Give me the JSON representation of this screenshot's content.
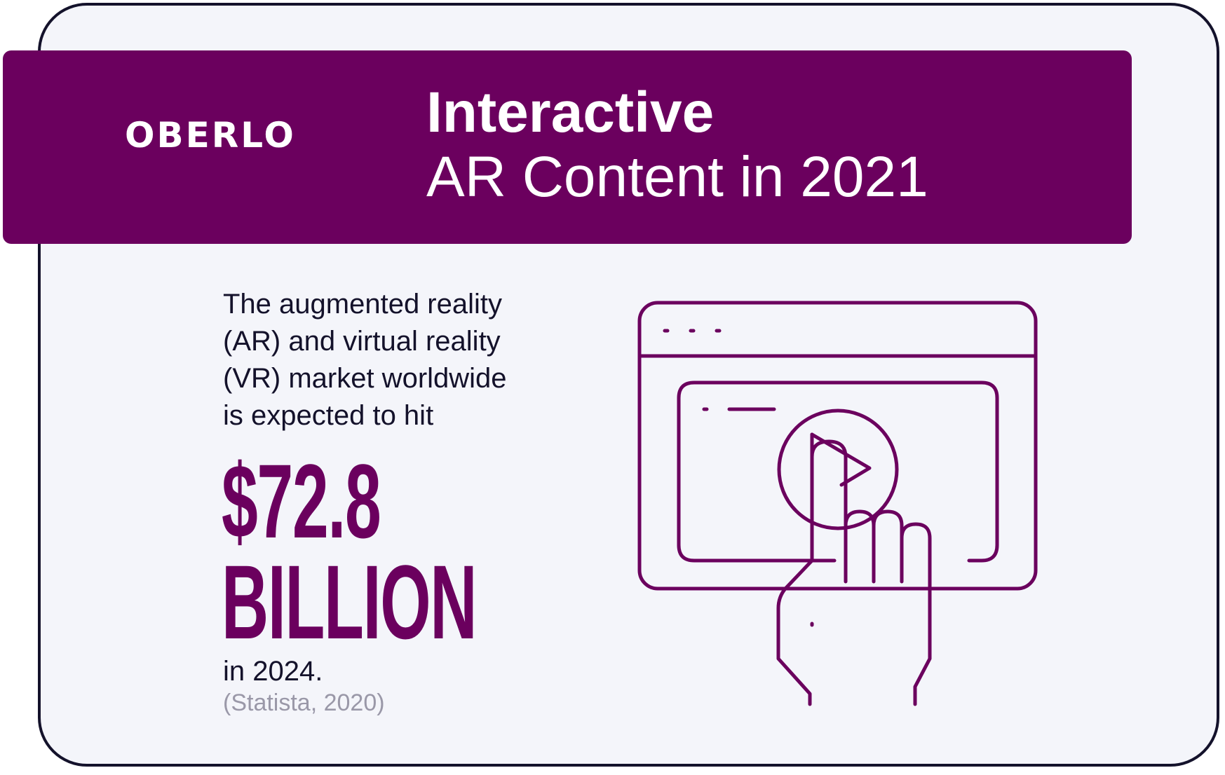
{
  "brand": {
    "logo_text": "OBERLO"
  },
  "header": {
    "title_line1": "Interactive",
    "title_line2": "AR Content in 2021"
  },
  "body": {
    "intro_lines": [
      "The augmented reality",
      "(AR) and virtual reality",
      "(VR) market worldwide",
      "is expected to hit"
    ],
    "stat_value": "$72.8",
    "stat_unit": "BILLION",
    "year_line": "in 2024.",
    "source": "(Statista, 2020)"
  },
  "colors": {
    "brand_purple": "#6b005e",
    "text_dark": "#14122b",
    "background": "#f4f5fa",
    "source_gray": "#9a98a8"
  },
  "illustration": {
    "icons": [
      "browser-window-icon",
      "video-play-icon",
      "tap-hand-icon"
    ]
  }
}
